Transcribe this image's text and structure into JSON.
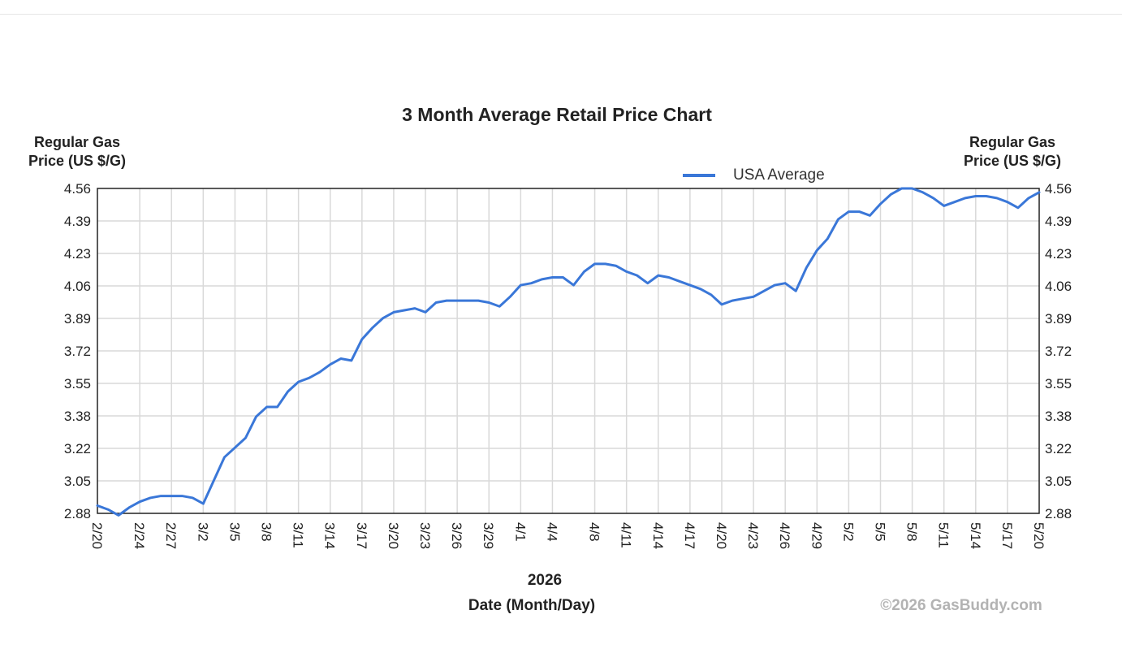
{
  "chart_data": {
    "type": "line",
    "title": "3 Month Average Retail Price Chart",
    "ylabel_left": [
      "Regular Gas",
      "Price (US $/G)"
    ],
    "ylabel_right": [
      "Regular Gas",
      "Price (US $/G)"
    ],
    "xlabel_year": "2026",
    "xlabel": "Date (Month/Day)",
    "copyright": "©2026 GasBuddy.com",
    "ylim": [
      2.88,
      4.56
    ],
    "yticks": [
      "2.88",
      "3.05",
      "3.22",
      "3.38",
      "3.55",
      "3.72",
      "3.89",
      "4.06",
      "4.23",
      "4.39",
      "4.56"
    ],
    "xticks": [
      "2/20",
      "2/24",
      "2/27",
      "3/2",
      "3/5",
      "3/8",
      "3/11",
      "3/14",
      "3/17",
      "3/20",
      "3/23",
      "3/26",
      "3/29",
      "4/1",
      "4/4",
      "4/8",
      "4/11",
      "4/14",
      "4/17",
      "4/20",
      "4/23",
      "4/26",
      "4/29",
      "5/2",
      "5/5",
      "5/8",
      "5/11",
      "5/14",
      "5/17",
      "5/20"
    ],
    "grid": true,
    "legend_position": "top-right",
    "line_color": "#3a77d8",
    "series": [
      {
        "name": "USA Average",
        "x": [
          "2/20",
          "2/21",
          "2/22",
          "2/23",
          "2/24",
          "2/25",
          "2/26",
          "2/27",
          "2/28",
          "3/1",
          "3/2",
          "3/3",
          "3/4",
          "3/5",
          "3/6",
          "3/7",
          "3/8",
          "3/9",
          "3/10",
          "3/11",
          "3/12",
          "3/13",
          "3/14",
          "3/15",
          "3/16",
          "3/17",
          "3/18",
          "3/19",
          "3/20",
          "3/21",
          "3/22",
          "3/23",
          "3/24",
          "3/25",
          "3/26",
          "3/27",
          "3/28",
          "3/29",
          "3/30",
          "3/31",
          "4/1",
          "4/2",
          "4/3",
          "4/4",
          "4/5",
          "4/6",
          "4/7",
          "4/8",
          "4/9",
          "4/10",
          "4/11",
          "4/12",
          "4/13",
          "4/14",
          "4/15",
          "4/16",
          "4/17",
          "4/18",
          "4/19",
          "4/20",
          "4/21",
          "4/22",
          "4/23",
          "4/24",
          "4/25",
          "4/26",
          "4/27",
          "4/28",
          "4/29",
          "4/30",
          "5/1",
          "5/2",
          "5/3",
          "5/4",
          "5/5",
          "5/6",
          "5/7",
          "5/8",
          "5/9",
          "5/10",
          "5/11",
          "5/12",
          "5/13",
          "5/14",
          "5/15",
          "5/16",
          "5/17",
          "5/18",
          "5/19",
          "5/20"
        ],
        "values": [
          2.92,
          2.9,
          2.87,
          2.91,
          2.94,
          2.96,
          2.97,
          2.97,
          2.97,
          2.96,
          2.93,
          3.05,
          3.17,
          3.22,
          3.27,
          3.38,
          3.43,
          3.43,
          3.51,
          3.56,
          3.58,
          3.61,
          3.65,
          3.68,
          3.67,
          3.78,
          3.84,
          3.89,
          3.92,
          3.93,
          3.94,
          3.92,
          3.97,
          3.98,
          3.98,
          3.98,
          3.98,
          3.97,
          3.95,
          4.0,
          4.06,
          4.07,
          4.09,
          4.1,
          4.1,
          4.06,
          4.13,
          4.17,
          4.17,
          4.16,
          4.13,
          4.11,
          4.07,
          4.11,
          4.1,
          4.08,
          4.06,
          4.04,
          4.01,
          3.96,
          3.98,
          3.99,
          4.0,
          4.03,
          4.06,
          4.07,
          4.03,
          4.15,
          4.24,
          4.3,
          4.4,
          4.44,
          4.44,
          4.42,
          4.48,
          4.53,
          4.56,
          4.56,
          4.54,
          4.51,
          4.47,
          4.49,
          4.51,
          4.52,
          4.52,
          4.51,
          4.49,
          4.46,
          4.51,
          4.54
        ]
      }
    ]
  }
}
